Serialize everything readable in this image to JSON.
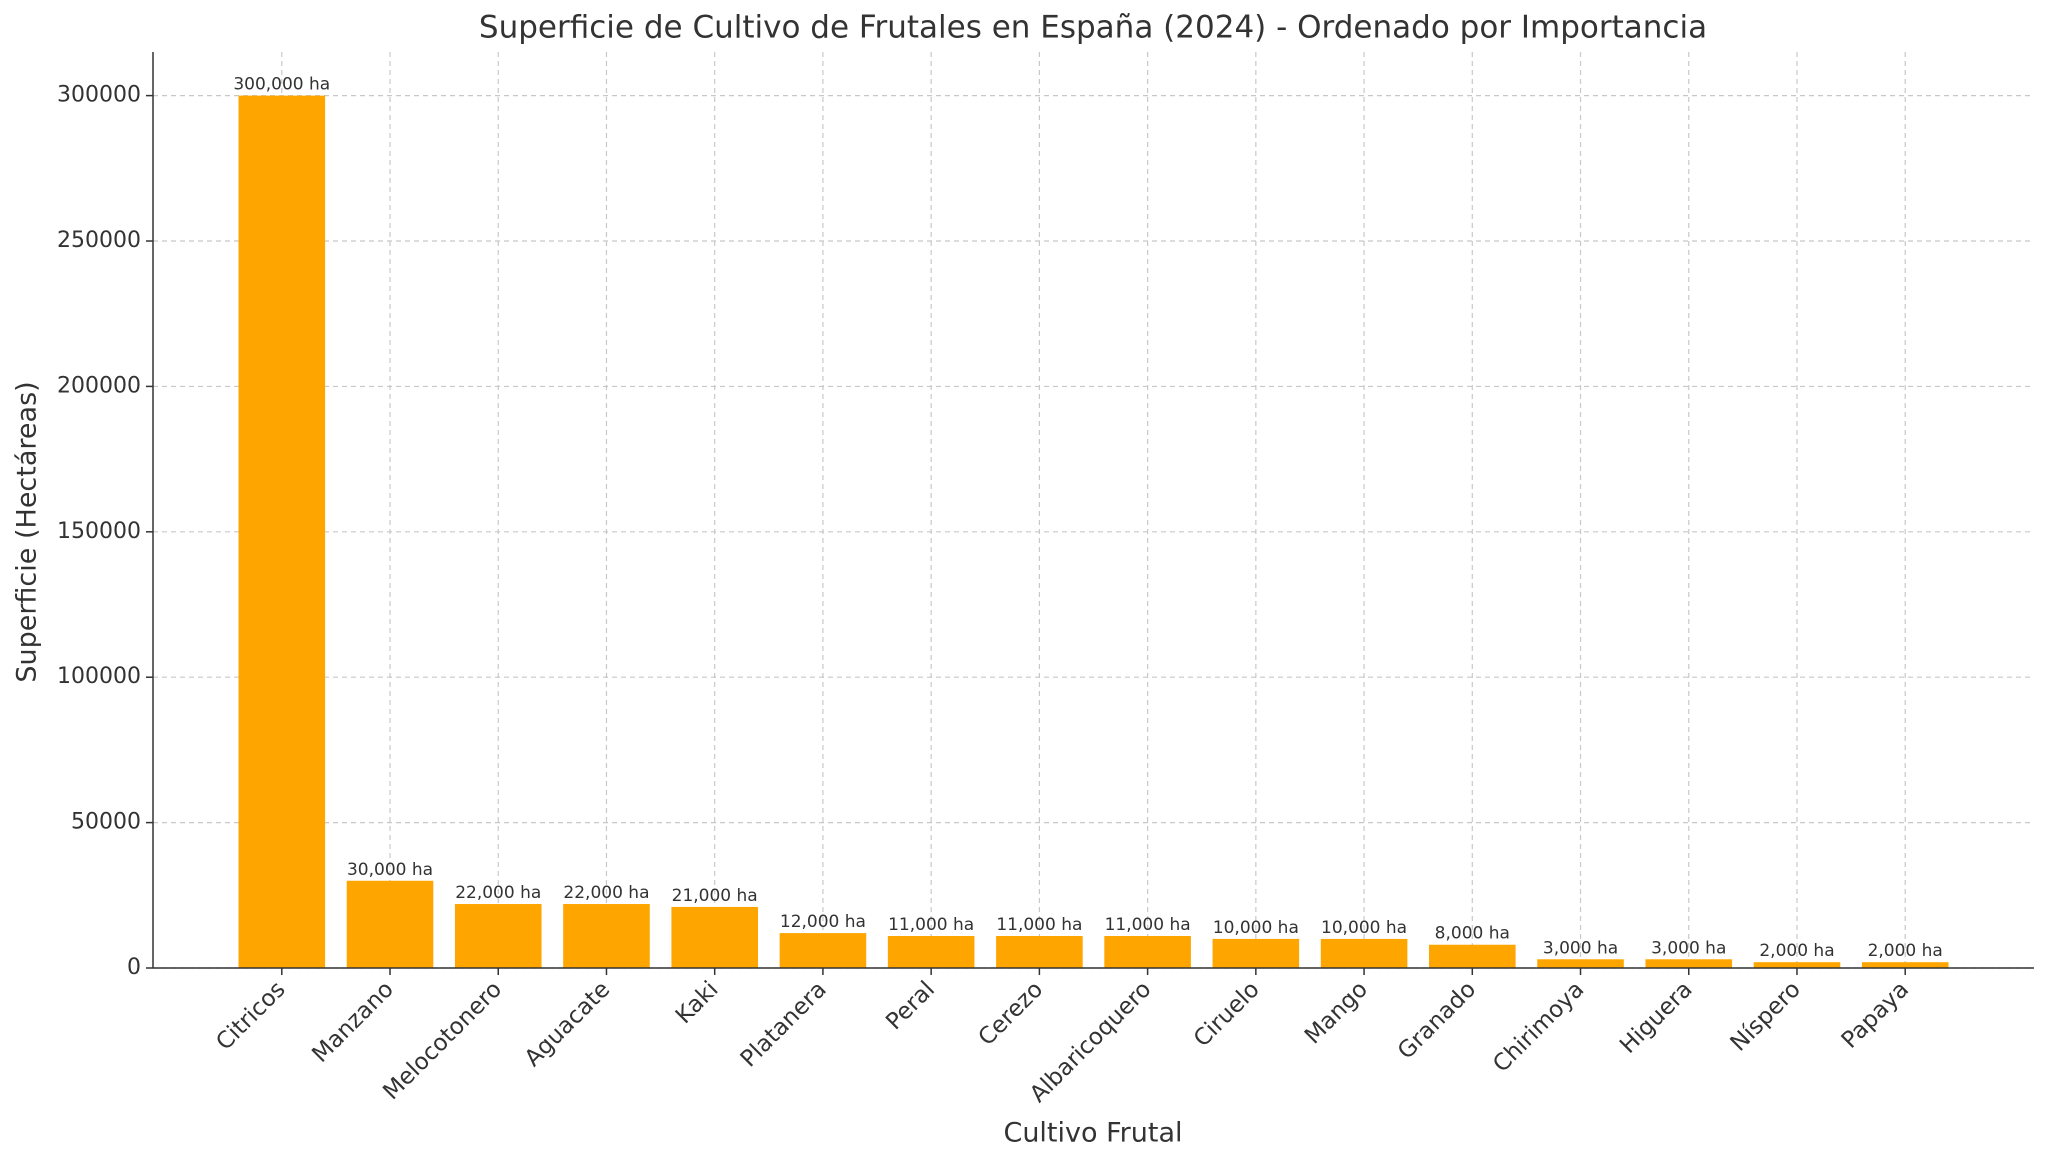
{
  "chart_data": {
    "type": "bar",
    "title": "Superficie de Cultivo de Frutales en España (2024) - Ordenado por Importancia",
    "x_label": "Cultivo Frutal",
    "y_label": "Superficie (Hectáreas)",
    "categories": [
      "Citricos",
      "Manzano",
      "Melocotonero",
      "Aguacate",
      "Kaki",
      "Platanera",
      "Peral",
      "Cerezo",
      "Albaricoquero",
      "Ciruelo",
      "Mango",
      "Granado",
      "Chirimoya",
      "Higuera",
      "Níspero",
      "Papaya"
    ],
    "values": [
      300000,
      30000,
      22000,
      22000,
      21000,
      12000,
      11000,
      11000,
      11000,
      10000,
      10000,
      8000,
      3000,
      3000,
      2000,
      2000
    ],
    "value_labels": [
      "300,000 ha",
      "30,000 ha",
      "22,000 ha",
      "22,000 ha",
      "21,000 ha",
      "12,000 ha",
      "11,000 ha",
      "11,000 ha",
      "11,000 ha",
      "10,000 ha",
      "10,000 ha",
      "8,000 ha",
      "3,000 ha",
      "3,000 ha",
      "2,000 ha",
      "2,000 ha"
    ],
    "color": "#FFA500",
    "ylim": [
      0,
      315000
    ],
    "yticks": [
      0,
      50000,
      100000,
      150000,
      200000,
      250000,
      300000
    ],
    "grid": true
  }
}
